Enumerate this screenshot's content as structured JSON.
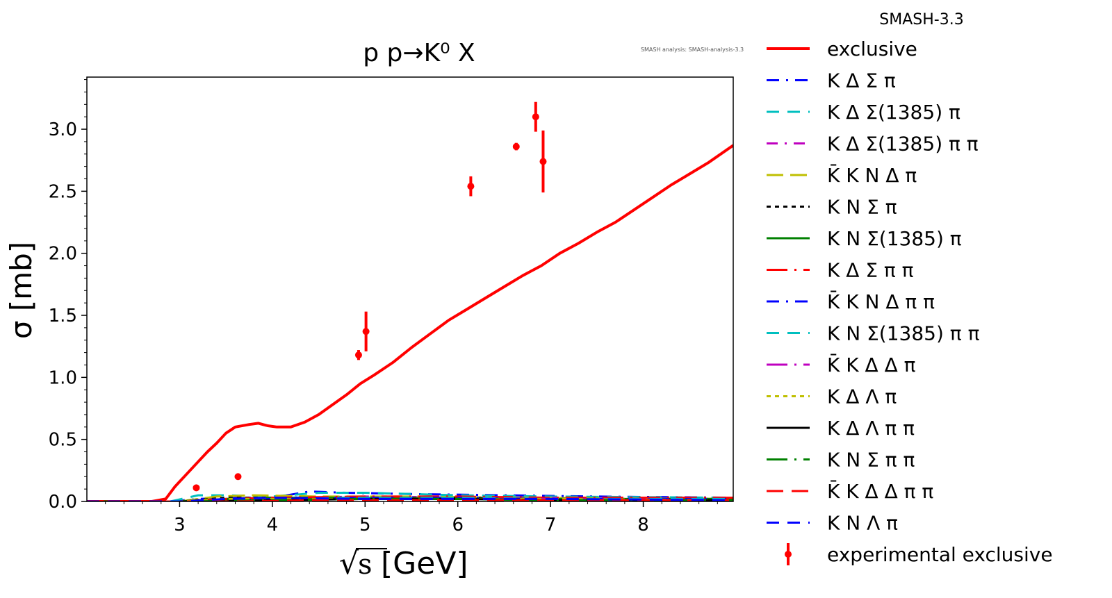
{
  "chart_data": {
    "type": "line",
    "title": "p p→K⁰ X",
    "watermark": "SMASH analysis: SMASH-analysis-3.3",
    "xlabel_prefix": "√",
    "xlabel_var": "s",
    "xlabel_unit": " [GeV]",
    "ylabel": "σ [mb]",
    "xlim": [
      2.0,
      8.97
    ],
    "ylim": [
      0.0,
      3.42
    ],
    "x_ticks": [
      3,
      4,
      5,
      6,
      7,
      8
    ],
    "y_ticks": [
      0.0,
      0.5,
      1.0,
      1.5,
      2.0,
      2.5,
      3.0
    ],
    "y_tick_labels": [
      "0.0",
      "0.5",
      "1.0",
      "1.5",
      "2.0",
      "2.5",
      "3.0"
    ],
    "grid": false,
    "legend_position": "outside-right",
    "legend_title": "SMASH-3.3",
    "series": [
      {
        "name": "exclusive",
        "color": "#ff0000",
        "dash": "",
        "width": 4,
        "x": [
          2.0,
          2.7,
          2.85,
          2.95,
          3.05,
          3.2,
          3.3,
          3.4,
          3.5,
          3.6,
          3.75,
          3.85,
          3.95,
          4.05,
          4.2,
          4.35,
          4.5,
          4.65,
          4.8,
          4.95,
          5.1,
          5.3,
          5.5,
          5.7,
          5.9,
          6.1,
          6.3,
          6.5,
          6.7,
          6.9,
          7.1,
          7.3,
          7.5,
          7.7,
          7.9,
          8.1,
          8.3,
          8.5,
          8.7,
          8.97
        ],
        "y": [
          0.0,
          0.0,
          0.02,
          0.12,
          0.2,
          0.32,
          0.4,
          0.47,
          0.55,
          0.6,
          0.62,
          0.63,
          0.61,
          0.6,
          0.6,
          0.64,
          0.7,
          0.78,
          0.86,
          0.95,
          1.02,
          1.12,
          1.24,
          1.35,
          1.46,
          1.55,
          1.64,
          1.73,
          1.82,
          1.9,
          2.0,
          2.08,
          2.17,
          2.25,
          2.35,
          2.45,
          2.55,
          2.64,
          2.73,
          2.87
        ]
      },
      {
        "name": "K Δ Σ π",
        "color": "#0000ff",
        "dash": "18,10,3,10",
        "width": 3,
        "x": [
          2.0,
          2.9,
          3.2,
          3.6,
          4.0,
          4.4,
          4.8,
          5.5,
          6.5,
          7.5,
          8.97
        ],
        "y": [
          0.0,
          0.0,
          0.02,
          0.03,
          0.03,
          0.08,
          0.07,
          0.06,
          0.05,
          0.04,
          0.03
        ]
      },
      {
        "name": "K Δ Σ(1385) π",
        "color": "#00bfbf",
        "dash": "18,12",
        "width": 3,
        "x": [
          2.0,
          2.9,
          3.2,
          3.5,
          4.0,
          4.5,
          5.0,
          6.0,
          7.0,
          8.97
        ],
        "y": [
          0.0,
          0.0,
          0.05,
          0.05,
          0.04,
          0.07,
          0.07,
          0.05,
          0.04,
          0.03
        ]
      },
      {
        "name": "K Δ Σ(1385) π π",
        "color": "#bf00bf",
        "dash": "16,10,3,10",
        "width": 3,
        "x": [
          2.0,
          3.0,
          3.5,
          4.0,
          5.0,
          6.0,
          7.0,
          8.97
        ],
        "y": [
          0.0,
          0.0,
          0.02,
          0.03,
          0.04,
          0.03,
          0.03,
          0.02
        ]
      },
      {
        "name": "K̄ K N Δ π",
        "color": "#bfbf00",
        "dash": "24,10",
        "width": 3,
        "x": [
          2.0,
          3.0,
          3.4,
          3.8,
          4.5,
          5.5,
          6.5,
          8.97
        ],
        "y": [
          0.0,
          0.0,
          0.04,
          0.05,
          0.04,
          0.04,
          0.03,
          0.02
        ]
      },
      {
        "name": "K N Σ π",
        "color": "#000000",
        "dash": "6,6",
        "width": 3,
        "x": [
          2.0,
          3.0,
          3.5,
          4.0,
          5.0,
          6.0,
          7.0,
          8.97
        ],
        "y": [
          0.0,
          0.0,
          0.03,
          0.03,
          0.03,
          0.03,
          0.02,
          0.02
        ]
      },
      {
        "name": "K N Σ(1385) π",
        "color": "#008000",
        "dash": "",
        "width": 3,
        "x": [
          2.0,
          3.0,
          3.5,
          4.0,
          5.0,
          6.0,
          7.0,
          8.97
        ],
        "y": [
          0.0,
          0.0,
          0.02,
          0.03,
          0.03,
          0.02,
          0.02,
          0.02
        ]
      },
      {
        "name": "K Δ Σ π π",
        "color": "#ff0000",
        "dash": "30,10,3,10",
        "width": 3,
        "x": [
          2.0,
          3.0,
          3.5,
          4.0,
          5.0,
          6.0,
          7.0,
          8.97
        ],
        "y": [
          0.0,
          0.0,
          0.02,
          0.03,
          0.04,
          0.04,
          0.03,
          0.03
        ]
      },
      {
        "name": "K̄ K N Δ π π",
        "color": "#0000ff",
        "dash": "18,10,3,10",
        "width": 3,
        "x": [
          2.0,
          3.2,
          4.0,
          5.0,
          6.0,
          7.0,
          8.97
        ],
        "y": [
          0.0,
          0.0,
          0.02,
          0.03,
          0.03,
          0.02,
          0.02
        ]
      },
      {
        "name": "K N Σ(1385) π π",
        "color": "#00bfbf",
        "dash": "18,12",
        "width": 3,
        "x": [
          2.0,
          3.2,
          4.0,
          5.0,
          6.0,
          7.0,
          8.97
        ],
        "y": [
          0.0,
          0.0,
          0.02,
          0.03,
          0.03,
          0.02,
          0.02
        ]
      },
      {
        "name": "K̄ K Δ Δ π",
        "color": "#bf00bf",
        "dash": "30,10,3,10",
        "width": 3,
        "x": [
          2.0,
          3.4,
          4.0,
          5.0,
          6.0,
          7.0,
          8.97
        ],
        "y": [
          0.0,
          0.0,
          0.01,
          0.02,
          0.02,
          0.02,
          0.01
        ]
      },
      {
        "name": "K Δ Λ π",
        "color": "#bfbf00",
        "dash": "6,6",
        "width": 3,
        "x": [
          2.0,
          3.0,
          3.5,
          4.0,
          5.0,
          6.0,
          7.0,
          8.97
        ],
        "y": [
          0.0,
          0.0,
          0.02,
          0.02,
          0.02,
          0.02,
          0.02,
          0.01
        ]
      },
      {
        "name": "K Δ Λ π π",
        "color": "#000000",
        "dash": "",
        "width": 3,
        "x": [
          2.0,
          3.2,
          4.0,
          5.0,
          6.0,
          7.0,
          8.97
        ],
        "y": [
          0.0,
          0.0,
          0.01,
          0.02,
          0.02,
          0.01,
          0.01
        ]
      },
      {
        "name": "K N Σ π π",
        "color": "#008000",
        "dash": "30,10,3,10",
        "width": 3,
        "x": [
          2.0,
          3.2,
          4.0,
          5.0,
          6.0,
          7.0,
          8.97
        ],
        "y": [
          0.0,
          0.0,
          0.01,
          0.02,
          0.02,
          0.01,
          0.01
        ]
      },
      {
        "name": "K̄ K Δ Δ π π",
        "color": "#ff0000",
        "dash": "24,12",
        "width": 3,
        "x": [
          2.0,
          3.6,
          4.5,
          5.5,
          6.5,
          7.5,
          8.97
        ],
        "y": [
          0.0,
          0.0,
          0.01,
          0.01,
          0.01,
          0.01,
          0.01
        ]
      },
      {
        "name": "K N Λ π",
        "color": "#0000ff",
        "dash": "18,12",
        "width": 3,
        "x": [
          2.0,
          3.0,
          3.5,
          4.0,
          5.0,
          6.0,
          7.0,
          8.97
        ],
        "y": [
          0.0,
          0.0,
          0.02,
          0.03,
          0.02,
          0.02,
          0.02,
          0.01
        ]
      }
    ],
    "experimental": {
      "name": "experimental exclusive",
      "color": "#ff0000",
      "points": [
        {
          "x": 3.18,
          "y": 0.11,
          "err": 0.0
        },
        {
          "x": 3.63,
          "y": 0.2,
          "err": 0.0
        },
        {
          "x": 4.93,
          "y": 1.18,
          "err": 0.04
        },
        {
          "x": 5.01,
          "y": 1.37,
          "err": 0.16
        },
        {
          "x": 6.14,
          "y": 2.54,
          "err": 0.08
        },
        {
          "x": 6.63,
          "y": 2.86,
          "err": 0.03
        },
        {
          "x": 6.84,
          "y": 3.1,
          "err": 0.12
        },
        {
          "x": 6.92,
          "y": 2.74,
          "err": 0.25
        }
      ]
    }
  }
}
